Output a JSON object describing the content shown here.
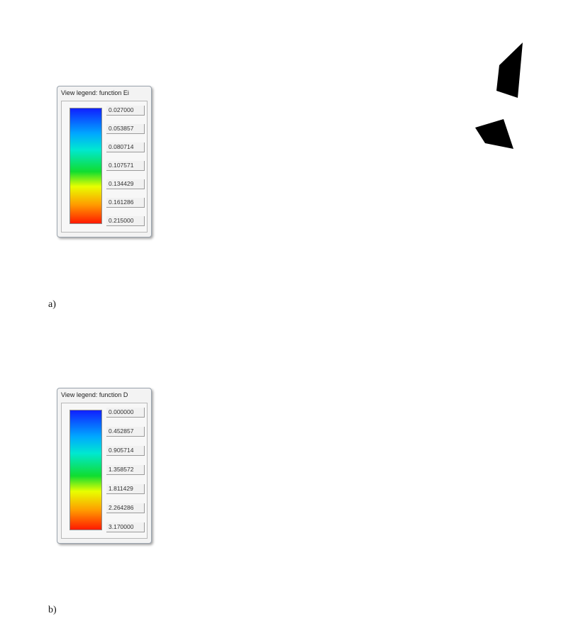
{
  "figure_a": {
    "legend": {
      "title": "View legend: function Ei",
      "values": [
        "0.027000",
        "0.053857",
        "0.080714",
        "0.107571",
        "0.134429",
        "0.161286",
        "0.215000"
      ]
    },
    "caption": "a)"
  },
  "figure_b": {
    "legend": {
      "title": "View legend: function D",
      "values": [
        "0.000000",
        "0.452857",
        "0.905714",
        "1.358572",
        "1.811429",
        "2.264286",
        "3.170000"
      ]
    },
    "caption": "b)"
  },
  "colors": {
    "scale": [
      "#1020ff",
      "#00a8ff",
      "#00e8d0",
      "#10dd30",
      "#e8ff00",
      "#ff9a00",
      "#ff1a00"
    ],
    "mesh_line": "#000000",
    "void": "#000000"
  }
}
